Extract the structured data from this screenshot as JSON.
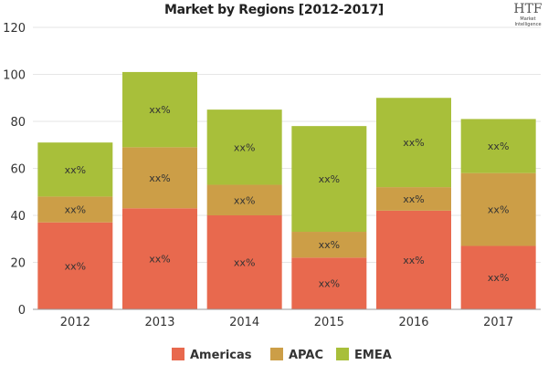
{
  "chart_data": {
    "type": "bar",
    "stacked": true,
    "title": "Market by Regions [2012-2017]",
    "categories": [
      "2012",
      "2013",
      "2014",
      "2015",
      "2016",
      "2017"
    ],
    "series": [
      {
        "name": "Americas",
        "color": "#e8694e",
        "values": [
          37,
          43,
          40,
          22,
          42,
          27
        ]
      },
      {
        "name": "APAC",
        "color": "#cc9e47",
        "values": [
          11,
          26,
          13,
          11,
          10,
          31
        ]
      },
      {
        "name": "EMEA",
        "color": "#a8bf3a",
        "values": [
          23,
          32,
          32,
          45,
          38,
          23
        ]
      }
    ],
    "data_label": "xx%",
    "ylim": [
      0,
      120
    ],
    "yticks": [
      0,
      20,
      40,
      60,
      80,
      100,
      120
    ],
    "grid": true,
    "legend": "bottom"
  },
  "logo": {
    "text": "HTF",
    "subtext": "Market Intelligence"
  }
}
